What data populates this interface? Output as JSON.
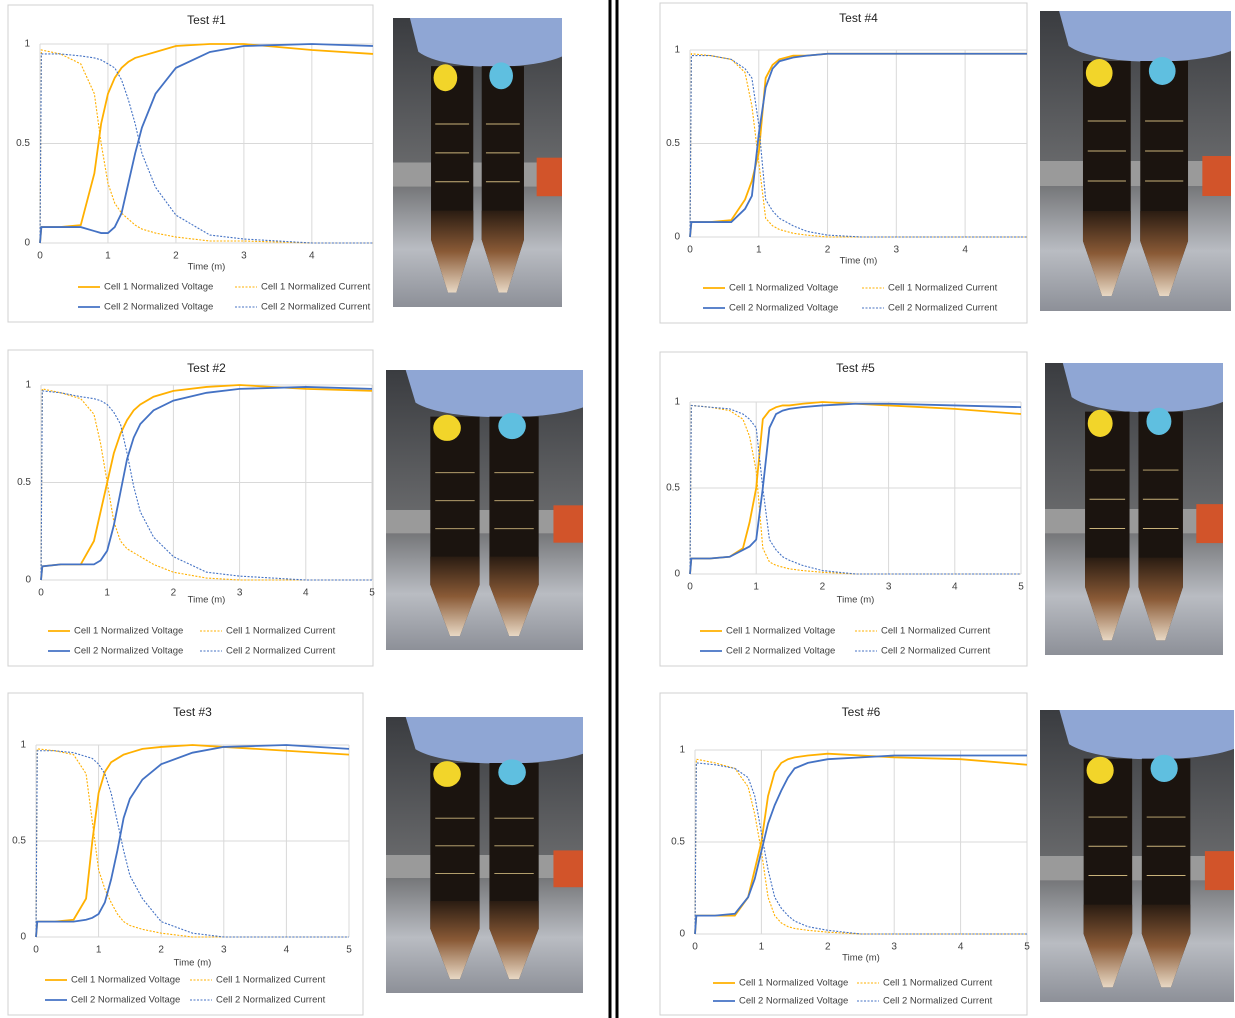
{
  "chart_data": [
    {
      "type": "line",
      "title": "Test #1",
      "x_label": "Time (m)",
      "grid": true,
      "x": [
        0,
        0.02,
        0.3,
        0.6,
        0.8,
        0.9,
        1,
        1.1,
        1.2,
        1.3,
        1.4,
        1.5,
        1.7,
        2,
        2.5,
        3,
        4,
        4.9
      ],
      "xlim": [
        0,
        4.9
      ],
      "xticks": [
        0,
        1,
        2,
        3,
        4
      ],
      "ylim": [
        0,
        1
      ],
      "yticks": [
        0,
        0.5,
        1
      ],
      "series": [
        {
          "name": "Cell 1 Normalized Voltage",
          "color": "#ffb000",
          "style": "solid",
          "values": [
            0,
            0.08,
            0.08,
            0.09,
            0.35,
            0.6,
            0.75,
            0.83,
            0.88,
            0.91,
            0.93,
            0.94,
            0.96,
            0.99,
            1,
            1,
            0.97,
            0.95
          ]
        },
        {
          "name": "Cell 1 Normalized Current",
          "color": "#ffb000",
          "style": "dotted",
          "values": [
            0,
            0.97,
            0.95,
            0.9,
            0.75,
            0.5,
            0.3,
            0.2,
            0.15,
            0.12,
            0.09,
            0.07,
            0.05,
            0.03,
            0.01,
            0.01,
            0,
            0
          ]
        },
        {
          "name": "Cell 2 Normalized Voltage",
          "color": "#4472c4",
          "style": "solid",
          "values": [
            0,
            0.08,
            0.08,
            0.08,
            0.06,
            0.05,
            0.05,
            0.08,
            0.15,
            0.3,
            0.45,
            0.58,
            0.75,
            0.88,
            0.96,
            0.99,
            1,
            0.99
          ]
        },
        {
          "name": "Cell 2 Normalized Current",
          "color": "#4472c4",
          "style": "dotted",
          "values": [
            0,
            0.95,
            0.95,
            0.94,
            0.93,
            0.92,
            0.9,
            0.88,
            0.82,
            0.72,
            0.6,
            0.45,
            0.28,
            0.14,
            0.04,
            0.02,
            0,
            0
          ]
        }
      ]
    },
    {
      "type": "line",
      "title": "Test #2",
      "x_label": "Time (m)",
      "grid": true,
      "x": [
        0,
        0.02,
        0.3,
        0.6,
        0.8,
        0.9,
        1,
        1.1,
        1.2,
        1.3,
        1.4,
        1.5,
        1.7,
        2,
        2.5,
        3,
        4,
        5
      ],
      "xlim": [
        0,
        5
      ],
      "xticks": [
        0,
        1,
        2,
        3,
        4,
        5
      ],
      "ylim": [
        0,
        1
      ],
      "yticks": [
        0,
        0.5,
        1
      ],
      "series": [
        {
          "name": "Cell 1 Normalized Voltage",
          "color": "#ffb000",
          "style": "solid",
          "values": [
            0,
            0.07,
            0.08,
            0.08,
            0.2,
            0.35,
            0.5,
            0.65,
            0.75,
            0.82,
            0.87,
            0.9,
            0.94,
            0.97,
            0.99,
            1,
            0.98,
            0.97
          ]
        },
        {
          "name": "Cell 1 Normalized Current",
          "color": "#ffb000",
          "style": "dotted",
          "values": [
            0,
            0.98,
            0.96,
            0.93,
            0.85,
            0.7,
            0.5,
            0.3,
            0.2,
            0.16,
            0.14,
            0.12,
            0.08,
            0.04,
            0.01,
            0,
            0,
            0
          ]
        },
        {
          "name": "Cell 2 Normalized Voltage",
          "color": "#4472c4",
          "style": "solid",
          "values": [
            0,
            0.07,
            0.08,
            0.08,
            0.08,
            0.1,
            0.15,
            0.28,
            0.45,
            0.62,
            0.73,
            0.8,
            0.87,
            0.92,
            0.96,
            0.98,
            0.99,
            0.98
          ]
        },
        {
          "name": "Cell 2 Normalized Current",
          "color": "#4472c4",
          "style": "dotted",
          "values": [
            0,
            0.97,
            0.96,
            0.94,
            0.93,
            0.92,
            0.9,
            0.86,
            0.8,
            0.65,
            0.48,
            0.35,
            0.22,
            0.12,
            0.04,
            0.02,
            0,
            0
          ]
        }
      ]
    },
    {
      "type": "line",
      "title": "Test #3",
      "x_label": "Time (m)",
      "grid": true,
      "x": [
        0,
        0.02,
        0.3,
        0.6,
        0.8,
        0.9,
        1,
        1.1,
        1.2,
        1.3,
        1.4,
        1.5,
        1.7,
        2,
        2.5,
        3,
        4,
        5
      ],
      "xlim": [
        0,
        5
      ],
      "xticks": [
        0,
        1,
        2,
        3,
        4,
        5
      ],
      "ylim": [
        0,
        1
      ],
      "yticks": [
        0,
        0.5,
        1
      ],
      "series": [
        {
          "name": "Cell 1 Normalized Voltage",
          "color": "#ffb000",
          "style": "solid",
          "values": [
            0,
            0.08,
            0.08,
            0.09,
            0.2,
            0.5,
            0.75,
            0.86,
            0.91,
            0.93,
            0.95,
            0.96,
            0.98,
            0.99,
            1,
            0.99,
            0.97,
            0.95
          ]
        },
        {
          "name": "Cell 1 Normalized Current",
          "color": "#ffb000",
          "style": "dotted",
          "values": [
            0,
            0.98,
            0.97,
            0.95,
            0.85,
            0.6,
            0.35,
            0.25,
            0.18,
            0.12,
            0.08,
            0.06,
            0.04,
            0.02,
            0,
            0,
            0,
            0
          ]
        },
        {
          "name": "Cell 2 Normalized Voltage",
          "color": "#4472c4",
          "style": "solid",
          "values": [
            0,
            0.08,
            0.08,
            0.08,
            0.09,
            0.1,
            0.12,
            0.18,
            0.3,
            0.45,
            0.62,
            0.72,
            0.82,
            0.9,
            0.96,
            0.99,
            1,
            0.98
          ]
        },
        {
          "name": "Cell 2 Normalized Current",
          "color": "#4472c4",
          "style": "dotted",
          "values": [
            0,
            0.97,
            0.97,
            0.96,
            0.94,
            0.93,
            0.9,
            0.85,
            0.75,
            0.6,
            0.45,
            0.32,
            0.2,
            0.08,
            0.02,
            0,
            0,
            0
          ]
        }
      ]
    },
    {
      "type": "line",
      "title": "Test #4",
      "x_label": "Time (m)",
      "grid": true,
      "x": [
        0,
        0.02,
        0.3,
        0.6,
        0.8,
        0.9,
        1,
        1.1,
        1.2,
        1.3,
        1.4,
        1.5,
        1.7,
        2,
        2.5,
        3,
        4,
        4.9
      ],
      "xlim": [
        0,
        4.9
      ],
      "xticks": [
        0,
        1,
        2,
        3,
        4
      ],
      "ylim": [
        0,
        1
      ],
      "yticks": [
        0,
        0.5,
        1
      ],
      "series": [
        {
          "name": "Cell 1 Normalized Voltage",
          "color": "#ffb000",
          "style": "solid",
          "values": [
            0,
            0.08,
            0.08,
            0.09,
            0.2,
            0.3,
            0.45,
            0.85,
            0.92,
            0.95,
            0.96,
            0.97,
            0.97,
            0.98,
            0.98,
            0.98,
            0.98,
            0.98
          ]
        },
        {
          "name": "Cell 1 Normalized Current",
          "color": "#ffb000",
          "style": "dotted",
          "values": [
            0,
            0.98,
            0.97,
            0.95,
            0.88,
            0.7,
            0.4,
            0.1,
            0.06,
            0.04,
            0.03,
            0.02,
            0.01,
            0,
            0,
            0,
            0,
            0
          ]
        },
        {
          "name": "Cell 2 Normalized Voltage",
          "color": "#4472c4",
          "style": "solid",
          "values": [
            0,
            0.08,
            0.08,
            0.08,
            0.15,
            0.22,
            0.55,
            0.8,
            0.9,
            0.94,
            0.95,
            0.96,
            0.97,
            0.98,
            0.98,
            0.98,
            0.98,
            0.98
          ]
        },
        {
          "name": "Cell 2 Normalized Current",
          "color": "#4472c4",
          "style": "dotted",
          "values": [
            0,
            0.97,
            0.97,
            0.95,
            0.9,
            0.85,
            0.6,
            0.2,
            0.14,
            0.1,
            0.08,
            0.06,
            0.03,
            0.01,
            0,
            0,
            0,
            0
          ]
        }
      ]
    },
    {
      "type": "line",
      "title": "Test #5",
      "x_label": "Time (m)",
      "grid": true,
      "x": [
        0,
        0.02,
        0.3,
        0.6,
        0.8,
        0.9,
        1,
        1.1,
        1.2,
        1.3,
        1.4,
        1.5,
        1.7,
        2,
        2.5,
        3,
        4,
        5
      ],
      "xlim": [
        0,
        5
      ],
      "xticks": [
        0,
        1,
        2,
        3,
        4,
        5
      ],
      "ylim": [
        0,
        1
      ],
      "yticks": [
        0,
        0.5,
        1
      ],
      "series": [
        {
          "name": "Cell 1 Normalized Voltage",
          "color": "#ffb000",
          "style": "solid",
          "values": [
            0,
            0.09,
            0.09,
            0.1,
            0.15,
            0.3,
            0.5,
            0.9,
            0.95,
            0.97,
            0.98,
            0.98,
            0.99,
            1,
            0.99,
            0.98,
            0.96,
            0.93
          ]
        },
        {
          "name": "Cell 1 Normalized Current",
          "color": "#ffb000",
          "style": "dotted",
          "values": [
            0,
            0.98,
            0.97,
            0.95,
            0.9,
            0.8,
            0.6,
            0.15,
            0.07,
            0.05,
            0.04,
            0.03,
            0.02,
            0.01,
            0,
            0,
            0,
            0
          ]
        },
        {
          "name": "Cell 2 Normalized Voltage",
          "color": "#4472c4",
          "style": "solid",
          "values": [
            0,
            0.09,
            0.09,
            0.1,
            0.14,
            0.16,
            0.2,
            0.5,
            0.85,
            0.93,
            0.95,
            0.96,
            0.97,
            0.98,
            0.99,
            0.99,
            0.98,
            0.97
          ]
        },
        {
          "name": "Cell 2 Normalized Current",
          "color": "#4472c4",
          "style": "dotted",
          "values": [
            0,
            0.98,
            0.97,
            0.96,
            0.93,
            0.9,
            0.85,
            0.5,
            0.2,
            0.14,
            0.1,
            0.08,
            0.05,
            0.02,
            0,
            0,
            0,
            0
          ]
        }
      ]
    },
    {
      "type": "line",
      "title": "Test #6",
      "x_label": "Time (m)",
      "grid": true,
      "x": [
        0,
        0.02,
        0.3,
        0.6,
        0.8,
        0.9,
        1,
        1.1,
        1.2,
        1.3,
        1.4,
        1.5,
        1.7,
        2,
        2.5,
        3,
        4,
        5
      ],
      "xlim": [
        0,
        5
      ],
      "xticks": [
        0,
        1,
        2,
        3,
        4,
        5
      ],
      "ylim": [
        0,
        1
      ],
      "yticks": [
        0,
        0.5,
        1
      ],
      "series": [
        {
          "name": "Cell 1 Normalized Voltage",
          "color": "#ffb000",
          "style": "solid",
          "values": [
            0,
            0.1,
            0.1,
            0.1,
            0.2,
            0.35,
            0.5,
            0.75,
            0.88,
            0.93,
            0.95,
            0.96,
            0.97,
            0.98,
            0.97,
            0.96,
            0.95,
            0.92
          ]
        },
        {
          "name": "Cell 1 Normalized Current",
          "color": "#ffb000",
          "style": "dotted",
          "values": [
            0,
            0.95,
            0.93,
            0.9,
            0.8,
            0.65,
            0.45,
            0.2,
            0.1,
            0.06,
            0.04,
            0.03,
            0.02,
            0.01,
            0,
            0,
            0,
            0
          ]
        },
        {
          "name": "Cell 2 Normalized Voltage",
          "color": "#4472c4",
          "style": "solid",
          "values": [
            0,
            0.1,
            0.1,
            0.11,
            0.2,
            0.3,
            0.45,
            0.6,
            0.7,
            0.78,
            0.85,
            0.9,
            0.93,
            0.95,
            0.96,
            0.97,
            0.97,
            0.97
          ]
        },
        {
          "name": "Cell 2 Normalized Current",
          "color": "#4472c4",
          "style": "dotted",
          "values": [
            0,
            0.93,
            0.92,
            0.9,
            0.85,
            0.75,
            0.55,
            0.35,
            0.2,
            0.14,
            0.1,
            0.07,
            0.04,
            0.02,
            0,
            0,
            0,
            0
          ]
        }
      ]
    }
  ]
}
